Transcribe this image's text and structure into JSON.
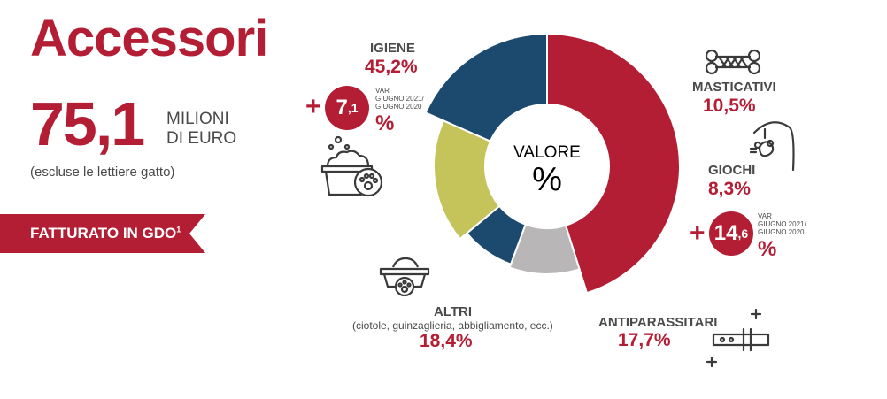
{
  "title": "Accessori",
  "total": {
    "value": "75,1",
    "unit_line1": "MILIONI",
    "unit_line2": "DI EURO",
    "note": "(escluse le lettiere gatto)"
  },
  "banner": {
    "label": "FATTURATO IN GDO",
    "footnote": "1"
  },
  "center": {
    "label": "VALORE",
    "symbol": "%"
  },
  "variations": [
    {
      "sign": "+",
      "integer": "7",
      "decimal": ",1",
      "unit": "%",
      "note_line1": "VAR",
      "note_line2": "GIUGNO 2021/",
      "note_line3": "GIUGNO 2020"
    },
    {
      "sign": "+",
      "integer": "14",
      "decimal": ",6",
      "unit": "%",
      "note_line1": "VAR",
      "note_line2": "GIUGNO 2021/",
      "note_line3": "GIUGNO 2020"
    }
  ],
  "colors": {
    "red": "#b41e35",
    "grey": "#b8b6b7",
    "blue": "#1c4a6e",
    "olive": "#c5c45b",
    "text": "#4a4a4a"
  },
  "chart_data": {
    "type": "pie",
    "donut": true,
    "title": "Accessori",
    "unit": "%",
    "categories": [
      "IGIENE",
      "MASTICATIVI",
      "GIOCHI",
      "ANTIPARASSITARI",
      "ALTRI"
    ],
    "values": [
      45.2,
      10.5,
      8.3,
      17.7,
      18.4
    ],
    "labels": [
      "45,2%",
      "10,5%",
      "8,3%",
      "17,7%",
      "18,4%"
    ],
    "extra_notes": {
      "ALTRI": "(ciotole, guinzaglieria, abbigliamento, ecc.)"
    },
    "slice_colors": [
      "#b41e35",
      "#b8b6b7",
      "#1c4a6e",
      "#c5c45b",
      "#1c4a6e"
    ],
    "slice_radii": [
      150,
      122,
      118,
      128,
      150
    ]
  }
}
